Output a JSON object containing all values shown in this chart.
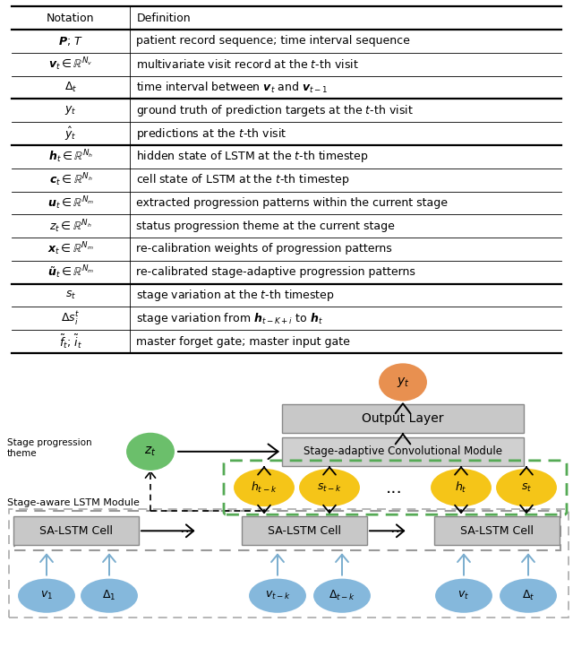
{
  "notation_col": [
    "Notation",
    "$\\boldsymbol{P}$; $T$",
    "$\\boldsymbol{v}_t \\in \\mathbb{R}^{N_v}$",
    "$\\Delta_t$",
    "$y_t$",
    "$\\hat{y}_t$",
    "$\\boldsymbol{h}_t \\in \\mathbb{R}^{N_h}$",
    "$\\boldsymbol{c}_t \\in \\mathbb{R}^{N_h}$",
    "$\\boldsymbol{u}_t \\in \\mathbb{R}^{N_m}$",
    "$z_t \\in \\mathbb{R}^{N_h}$",
    "$\\boldsymbol{x}_t \\in \\mathbb{R}^{N_m}$",
    "$\\tilde{\\boldsymbol{u}}_t \\in \\mathbb{R}^{N_m}$",
    "$s_t$",
    "$\\Delta s_i^t$",
    "$\\tilde{f}_t$; $\\tilde{i}_t$"
  ],
  "definition_col": [
    "Definition",
    "patient record sequence; time interval sequence",
    "multivariate visit record at the $t$-th visit",
    "time interval between $\\boldsymbol{v}_t$ and $\\boldsymbol{v}_{t-1}$",
    "ground truth of prediction targets at the $t$-th visit",
    "predictions at the $t$-th visit",
    "hidden state of LSTM at the $t$-th timestep",
    "cell state of LSTM at the $t$-th timestep",
    "extracted progression patterns within the current stage",
    "status progression theme at the current stage",
    "re-calibration weights of progression patterns",
    "re-calibrated stage-adaptive progression patterns",
    "stage variation at the $t$-th timestep",
    "stage variation from $\\boldsymbol{h}_{t-K+i}$ to $\\boldsymbol{h}_t$",
    "master forget gate; master input gate"
  ],
  "thick_line_rows": [
    0,
    1,
    4,
    6,
    12,
    15
  ],
  "col_split": 0.215,
  "table_fs": 9.0,
  "orange": "#E89050",
  "green_node": "#6BBF6B",
  "yellow": "#F5C518",
  "blue_node": "#85B8DC",
  "gray_box": "#C8C8C8",
  "gray_box2": "#D0D0D0"
}
